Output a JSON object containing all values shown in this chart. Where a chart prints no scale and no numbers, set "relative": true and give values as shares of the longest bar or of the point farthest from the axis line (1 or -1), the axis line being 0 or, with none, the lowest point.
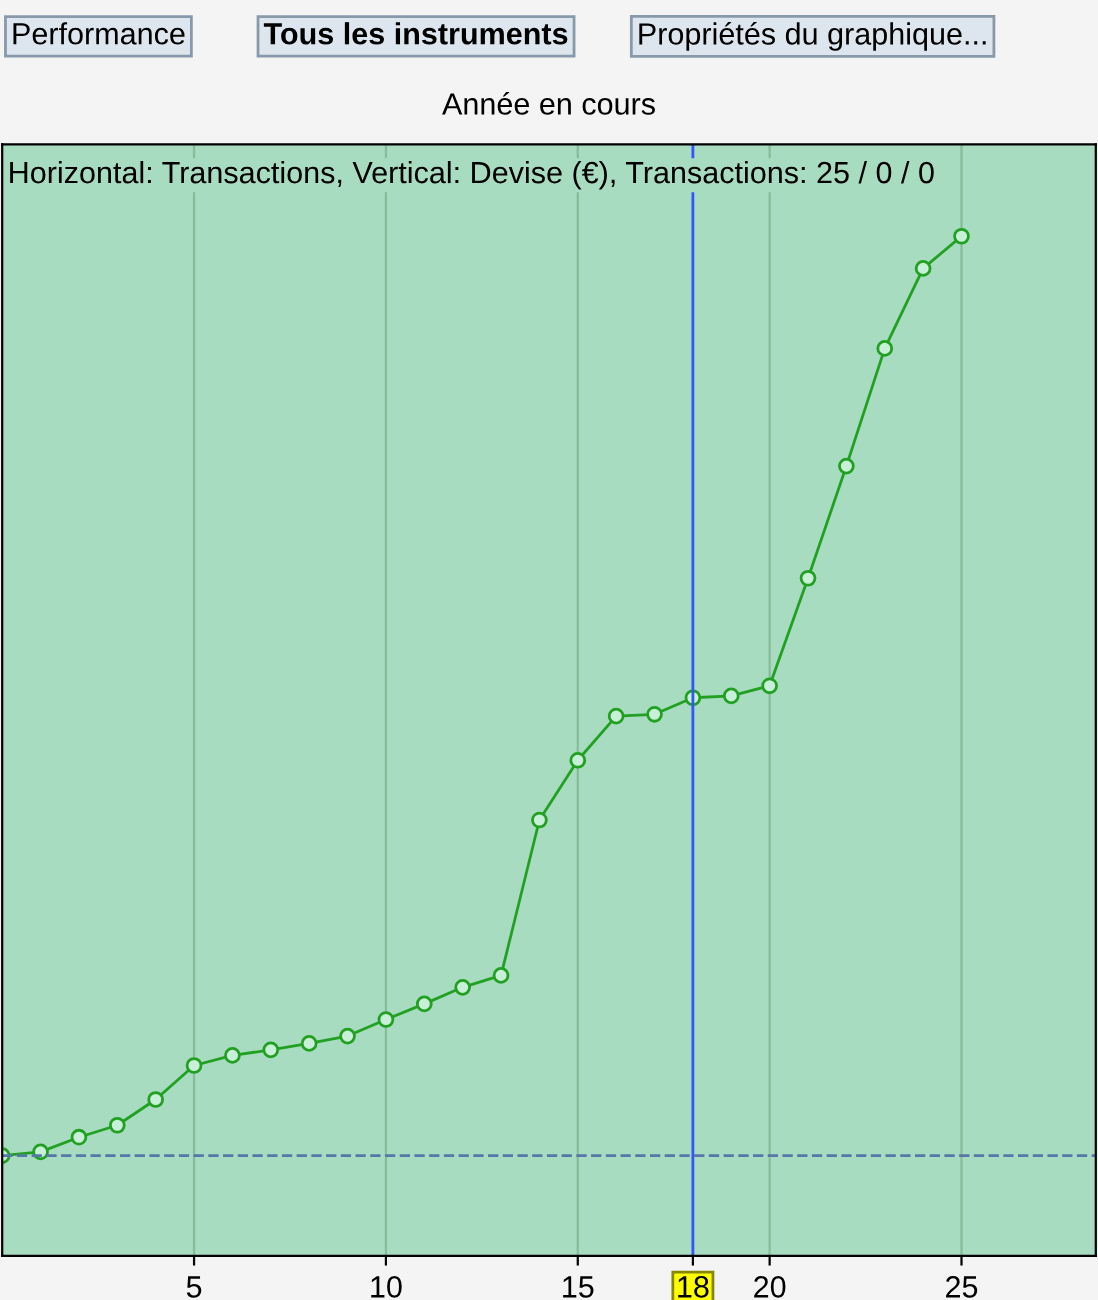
{
  "chart_data": {
    "type": "line",
    "relative": true,
    "title": "Année en cours",
    "subtitle": "Horizontal: Transactions, Vertical: Devise (€), Transactions: 25 / 0 / 0",
    "annotations": [
      "Performance",
      "Tous les instruments",
      "Propriétés du graphique..."
    ],
    "x": [
      0,
      1,
      2,
      3,
      4,
      5,
      6,
      7,
      8,
      9,
      10,
      11,
      12,
      13,
      14,
      15,
      16,
      17,
      18,
      19,
      20,
      21,
      22,
      23,
      24,
      25
    ],
    "series": [
      {
        "color": "#22a022",
        "values": [
          0,
          0.004,
          0.02,
          0.033,
          0.061,
          0.098,
          0.109,
          0.115,
          0.122,
          0.13,
          0.148,
          0.165,
          0.183,
          0.196,
          0.365,
          0.43,
          0.478,
          0.48,
          0.498,
          0.5,
          0.511,
          0.628,
          0.75,
          0.878,
          0.965,
          1
        ]
      }
    ],
    "xlim": [
      0,
      28.5
    ],
    "xticks": [
      5,
      10,
      15,
      18,
      20,
      25
    ],
    "grid": "x",
    "marker": "circle",
    "line_style": "solid",
    "ref_lines": [
      {
        "axis": "x",
        "value": 18,
        "color": "#3355ff"
      }
    ]
  }
}
